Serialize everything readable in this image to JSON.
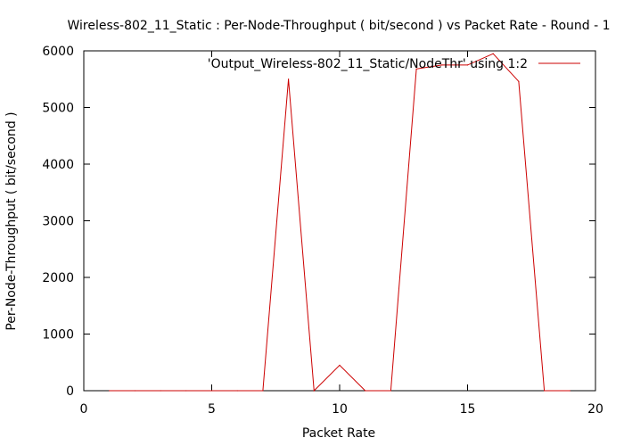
{
  "chart_data": {
    "type": "line",
    "title": "Wireless-802_11_Static : Per-Node-Throughput ( bit/second ) vs Packet Rate - Round - 1",
    "xlabel": "Packet Rate",
    "ylabel": "Per-Node-Throughput ( bit/second )",
    "xlim": [
      0,
      20
    ],
    "ylim": [
      0,
      6000
    ],
    "xticks": [
      "0",
      "5",
      "10",
      "15",
      "20"
    ],
    "yticks": [
      "0",
      "1000",
      "2000",
      "3000",
      "4000",
      "5000",
      "6000"
    ],
    "grid": false,
    "legend_position": "top-right",
    "series": [
      {
        "name": "'Output_Wireless-802_11_Static/NodeThr' using 1:2",
        "color": "#cc0000",
        "x": [
          1,
          2,
          3,
          4,
          5,
          6,
          7,
          8,
          9,
          10,
          11,
          12,
          13,
          14,
          15,
          16,
          17,
          18,
          19
        ],
        "y": [
          0,
          0,
          0,
          0,
          0,
          0,
          0,
          5500,
          0,
          450,
          0,
          0,
          5680,
          5750,
          5750,
          5950,
          5460,
          0,
          0
        ]
      }
    ]
  }
}
